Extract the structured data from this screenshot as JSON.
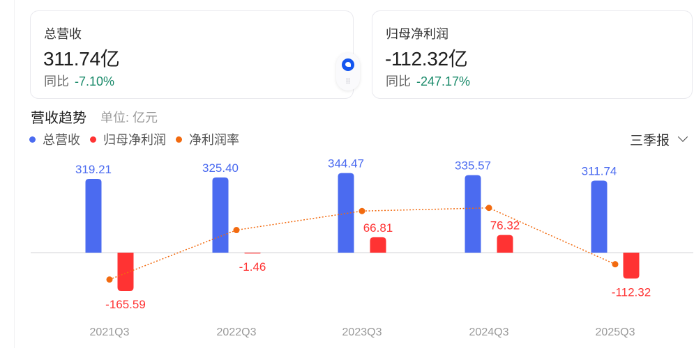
{
  "cards": [
    {
      "title": "总营收",
      "value": "311.74亿",
      "yoy_label": "同比",
      "yoy_value": "-7.10%"
    },
    {
      "title": "归母净利润",
      "value": "-112.32亿",
      "yoy_label": "同比",
      "yoy_value": "-247.17%"
    }
  ],
  "section": {
    "title": "营收趋势",
    "unit": "单位: 亿元"
  },
  "legend": [
    {
      "label": "总营收",
      "color": "#4b6bf0"
    },
    {
      "label": "归母净利润",
      "color": "#ff3333"
    },
    {
      "label": "净利润率",
      "color": "#f26a0f"
    }
  ],
  "period_select": {
    "selected": "三季报"
  },
  "colors": {
    "revenue": "#4b6bf0",
    "profit": "#ff3333",
    "margin": "#f26a0f",
    "positive_yoy": "#1a8a6a",
    "axis_label": "#999999"
  },
  "chart_data": {
    "type": "bar",
    "title": "营收趋势",
    "unit": "亿元",
    "categories": [
      "2021Q3",
      "2022Q3",
      "2023Q3",
      "2024Q3",
      "2025Q3"
    ],
    "series": [
      {
        "name": "总营收",
        "type": "bar",
        "values": [
          319.21,
          325.4,
          344.47,
          335.57,
          311.74
        ]
      },
      {
        "name": "归母净利润",
        "type": "bar",
        "values": [
          -165.59,
          -1.46,
          66.81,
          76.32,
          -112.32
        ]
      },
      {
        "name": "净利润率",
        "type": "line",
        "values": [
          -51.9,
          -0.4,
          19.4,
          22.7,
          -36.0
        ],
        "note": "values estimated from pixel positions (percent, not labeled)"
      }
    ],
    "grid": false,
    "legend_position": "top-left",
    "baseline": 0
  }
}
